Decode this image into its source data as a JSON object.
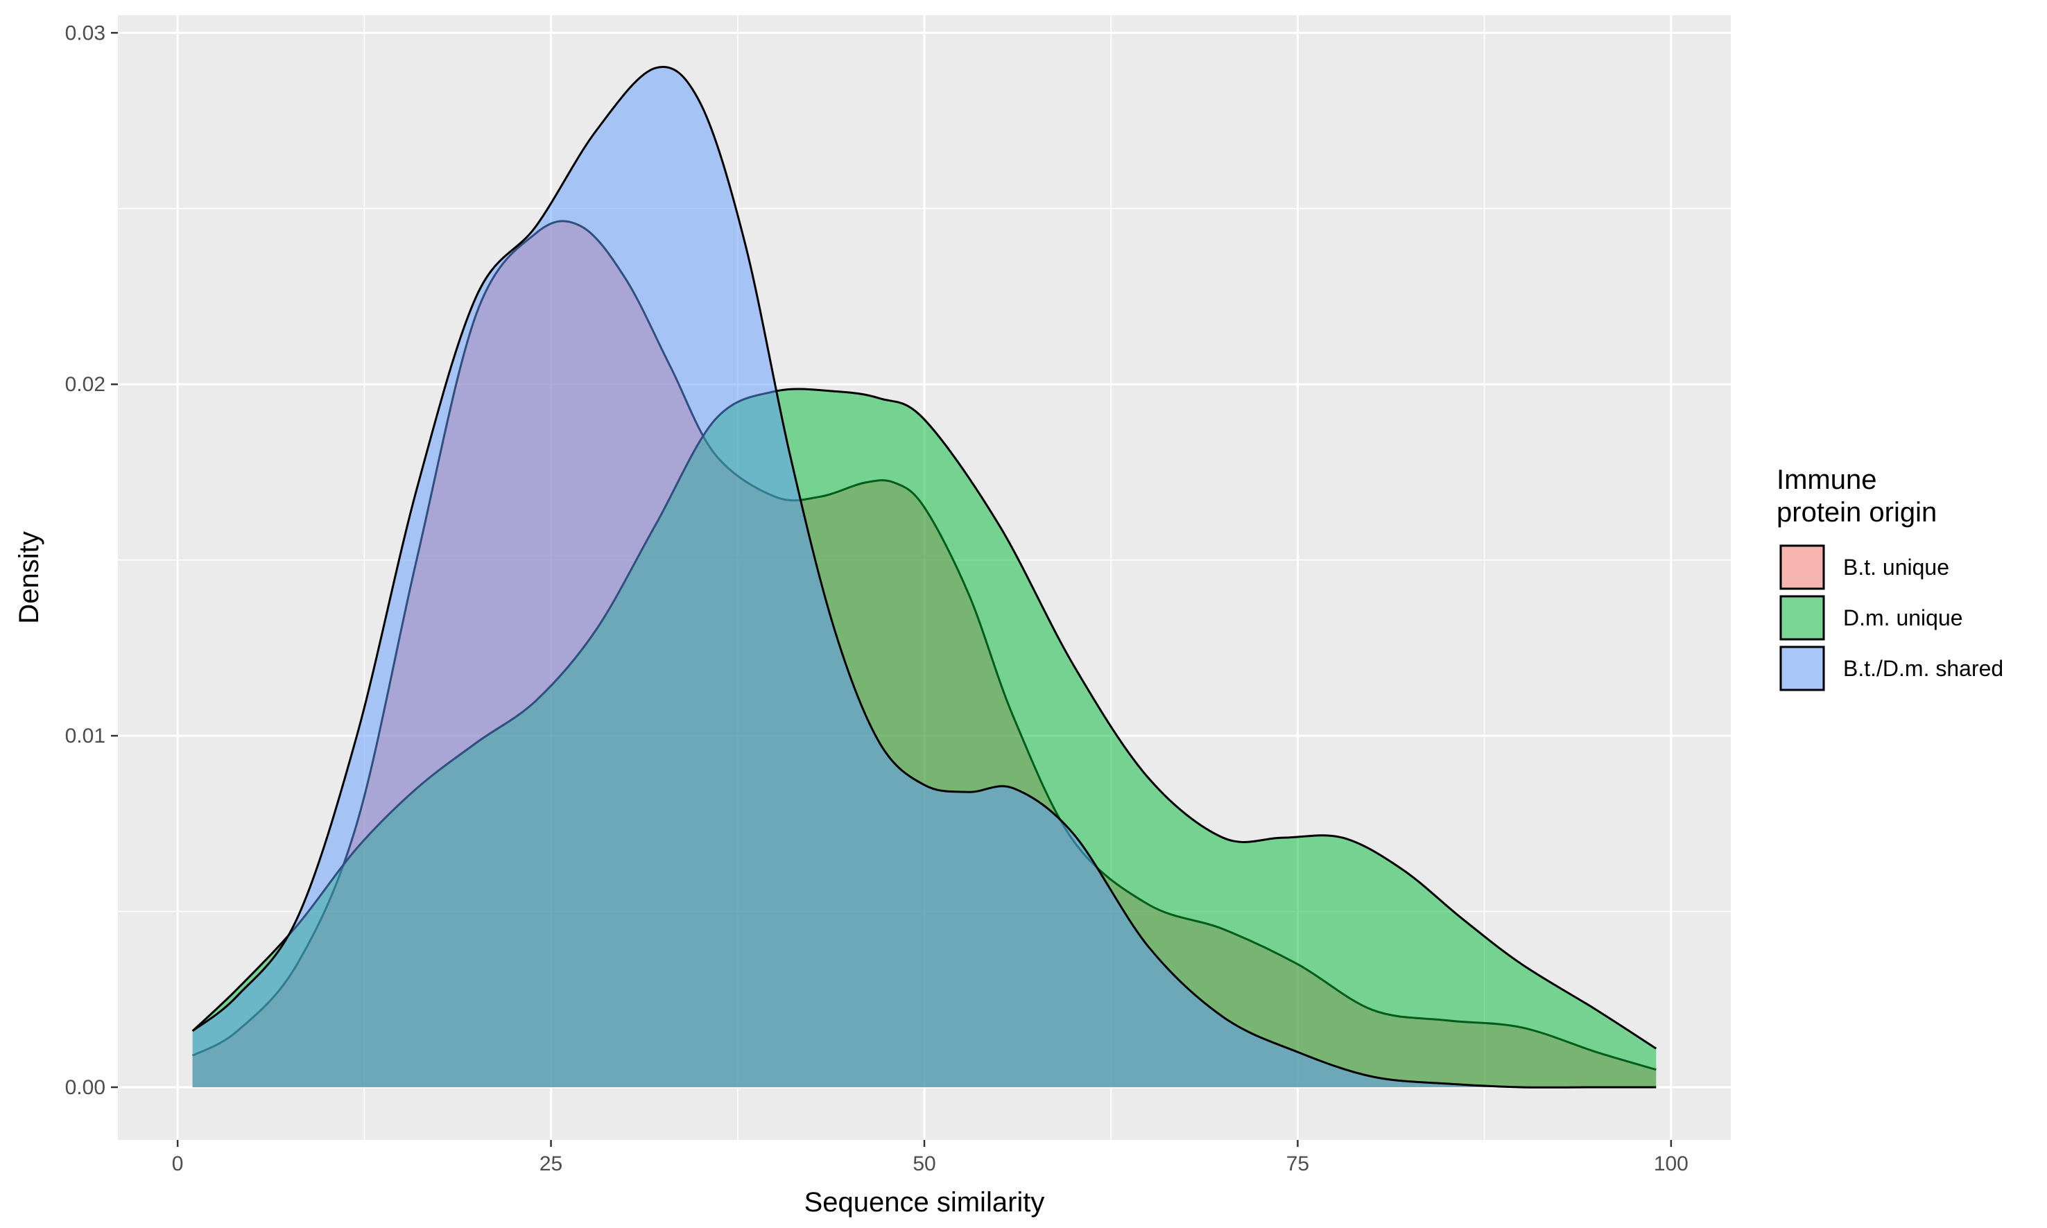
{
  "chart_data": {
    "type": "area",
    "subtype": "density",
    "xlabel": "Sequence similarity",
    "ylabel": "Density",
    "xlim": [
      -4,
      104
    ],
    "ylim": [
      -0.0015,
      0.0305
    ],
    "x_ticks": [
      0,
      25,
      50,
      75,
      100
    ],
    "y_ticks": [
      0.0,
      0.01,
      0.02,
      0.03
    ],
    "x_tick_labels": [
      "0",
      "25",
      "50",
      "75",
      "100"
    ],
    "y_tick_labels": [
      "0.00",
      "0.01",
      "0.02",
      "0.03"
    ],
    "grid": true,
    "legend": {
      "title_lines": [
        "Immune",
        "protein origin"
      ],
      "placement": "right"
    },
    "series": [
      {
        "name": "B.t. unique",
        "color": "#F8766D",
        "x": [
          1,
          4,
          8,
          12,
          16,
          20,
          24,
          27,
          30,
          33,
          36,
          40,
          43,
          46,
          48,
          50,
          53,
          56,
          60,
          65,
          70,
          75,
          80,
          85,
          90,
          95,
          99
        ],
        "y": [
          0.0009,
          0.0016,
          0.0035,
          0.0075,
          0.015,
          0.022,
          0.0243,
          0.0245,
          0.023,
          0.0205,
          0.018,
          0.0168,
          0.0168,
          0.0172,
          0.0172,
          0.0165,
          0.014,
          0.0105,
          0.007,
          0.0052,
          0.0045,
          0.0035,
          0.0022,
          0.0019,
          0.0017,
          0.001,
          0.0005
        ]
      },
      {
        "name": "D.m. unique",
        "color": "#00BA38",
        "x": [
          1,
          4,
          8,
          12,
          16,
          20,
          24,
          28,
          32,
          36,
          40,
          44,
          47,
          50,
          55,
          60,
          65,
          70,
          74,
          78,
          82,
          86,
          90,
          95,
          99
        ],
        "y": [
          0.0016,
          0.0028,
          0.0046,
          0.0068,
          0.0085,
          0.0098,
          0.011,
          0.013,
          0.016,
          0.019,
          0.0198,
          0.0198,
          0.0196,
          0.019,
          0.016,
          0.012,
          0.0088,
          0.0071,
          0.0071,
          0.0071,
          0.0062,
          0.0048,
          0.0035,
          0.0022,
          0.0011
        ]
      },
      {
        "name": "B.t./D.m. shared",
        "color": "#619CFF",
        "x": [
          1,
          4,
          8,
          12,
          16,
          20,
          24,
          28,
          32,
          35,
          38,
          41,
          44,
          47,
          50,
          53,
          56,
          60,
          65,
          70,
          75,
          80,
          85,
          90,
          95,
          99
        ],
        "y": [
          0.0016,
          0.0026,
          0.0048,
          0.01,
          0.017,
          0.0225,
          0.0245,
          0.0272,
          0.029,
          0.028,
          0.024,
          0.018,
          0.013,
          0.0098,
          0.0086,
          0.0084,
          0.0085,
          0.0072,
          0.004,
          0.002,
          0.001,
          0.0003,
          0.0001,
          0.0,
          0.0,
          0.0
        ]
      }
    ]
  }
}
